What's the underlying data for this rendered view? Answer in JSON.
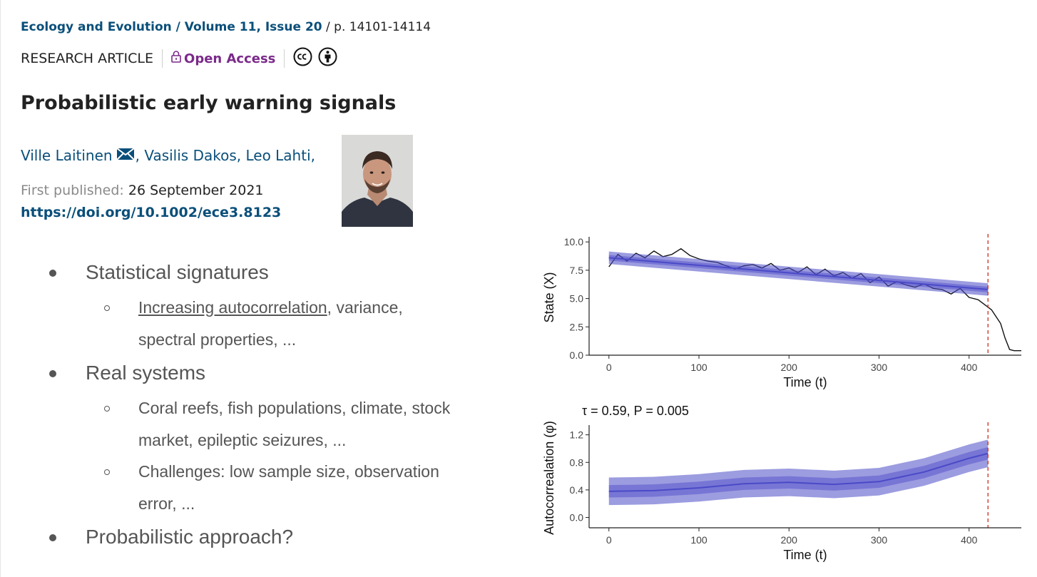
{
  "header": {
    "journal": "Ecology and Evolution",
    "volume_issue": "Volume 11, Issue 20",
    "pages": "p. 14101-14114",
    "article_type": "RESEARCH ARTICLE",
    "open_access": "Open Access",
    "icons": [
      "lock-icon",
      "cc-icon",
      "person-icon"
    ]
  },
  "article": {
    "title": "Probabilistic early warning signals",
    "authors": [
      "Ville Laitinen",
      "Vasilis Dakos",
      "Leo Lahti"
    ],
    "published_label": "First published:",
    "published_date": "26 September 2021",
    "doi": "https://doi.org/10.1002/ece3.8123"
  },
  "bullets": [
    {
      "text": "Statistical signatures",
      "sub": [
        {
          "underlined": "Increasing autocorrelation",
          "lines": [
            ", variance,",
            "spectral properties, ..."
          ]
        }
      ]
    },
    {
      "text": "Real systems",
      "sub": [
        {
          "lines": [
            "Coral reefs, fish populations, climate, stock",
            "market, epileptic seizures, ..."
          ]
        },
        {
          "lines": [
            "Challenges: low sample size, observation",
            "error, ..."
          ]
        }
      ]
    },
    {
      "text": "Probabilistic approach?"
    }
  ],
  "chart_data": [
    {
      "type": "line",
      "xlabel": "Time (t)",
      "ylabel": "State (X)",
      "xlim": [
        -22,
        458
      ],
      "ylim": [
        0,
        10.2
      ],
      "xticks": [
        0,
        100,
        200,
        300,
        400
      ],
      "yticks": [
        0.0,
        2.5,
        5.0,
        7.5,
        10.0
      ],
      "ytick_labels": [
        "0.0",
        "2.5",
        "5.0",
        "7.5",
        "10.0"
      ],
      "threshold_x": 421,
      "series": [
        {
          "x": [
            0,
            10,
            20,
            30,
            40,
            50,
            60,
            70,
            80,
            90,
            100,
            110,
            120,
            130,
            140,
            150,
            160,
            170,
            180,
            190,
            200,
            210,
            220,
            230,
            240,
            250,
            260,
            270,
            280,
            290,
            300,
            310,
            320,
            330,
            340,
            350,
            360,
            370,
            380,
            390,
            400,
            410,
            420,
            425,
            430,
            435,
            440,
            445,
            450,
            458
          ],
          "y": [
            7.8,
            8.9,
            8.3,
            9.0,
            8.6,
            9.2,
            8.7,
            8.9,
            9.4,
            8.8,
            8.5,
            8.3,
            8.2,
            7.9,
            7.6,
            7.9,
            8.0,
            7.7,
            8.1,
            7.5,
            7.7,
            7.3,
            7.8,
            7.1,
            7.6,
            7.0,
            7.3,
            6.8,
            7.2,
            6.4,
            6.9,
            6.1,
            6.5,
            6.2,
            6.0,
            6.3,
            5.9,
            5.8,
            5.4,
            5.9,
            5.1,
            4.9,
            4.3,
            4.0,
            3.4,
            2.8,
            1.5,
            0.5,
            0.4,
            0.4
          ],
          "color": "#111111"
        },
        {
          "x": [
            0,
            421
          ],
          "y": [
            8.6,
            5.8
          ],
          "color": "#4b4ac7",
          "band_width": 0.55
        }
      ]
    },
    {
      "type": "line",
      "title": "τ = 0.59, P = 0.005",
      "xlabel": "Time (t)",
      "ylabel": "Autocorrealation (φ)",
      "xlim": [
        -22,
        458
      ],
      "ylim": [
        -0.15,
        1.3
      ],
      "xticks": [
        0,
        100,
        200,
        300,
        400
      ],
      "yticks": [
        0.0,
        0.4,
        0.8,
        1.2
      ],
      "ytick_labels": [
        "0.0",
        "0.4",
        "0.8",
        "1.2"
      ],
      "threshold_x": 421,
      "series": [
        {
          "x": [
            0,
            50,
            100,
            150,
            200,
            250,
            300,
            350,
            400,
            421
          ],
          "y": [
            0.38,
            0.39,
            0.43,
            0.49,
            0.51,
            0.48,
            0.52,
            0.66,
            0.86,
            0.93
          ],
          "color": "#4b4ac7",
          "band_width": 0.2
        }
      ]
    }
  ]
}
